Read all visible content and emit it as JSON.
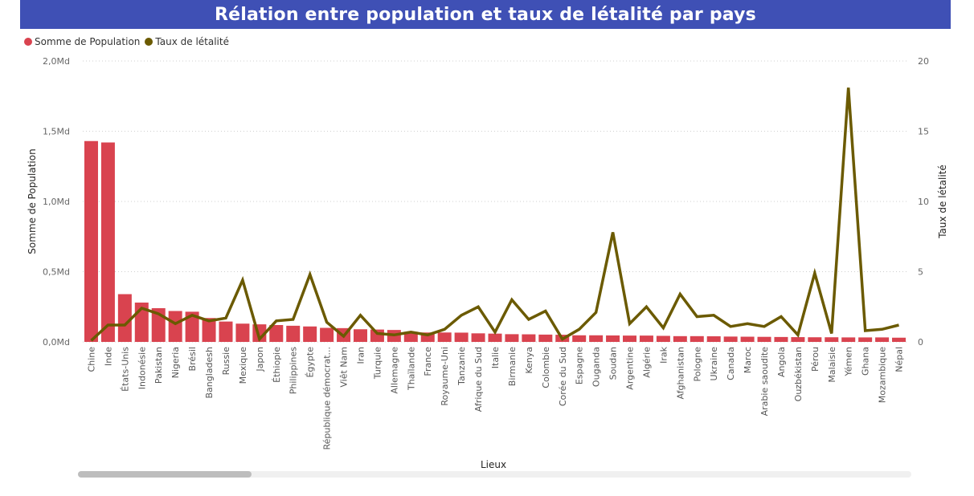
{
  "title": "Rélation entre population et taux de létalité par pays",
  "legend": {
    "population_label": "Somme de Population",
    "lethality_label": "Taux de létalité"
  },
  "colors": {
    "title_bg": "#3f50b5",
    "bars": "#d9434f",
    "line": "#6b5a00"
  },
  "chart_data": {
    "type": "bar",
    "title": "Rélation entre population et taux de létalité par pays",
    "xlabel": "Lieux",
    "ylabel": "Somme de Population",
    "y2label": "Taux de létalité",
    "ylim": [
      0,
      2.0
    ],
    "y2lim": [
      0,
      20
    ],
    "y_ticks": [
      "0,0Md",
      "0,5Md",
      "1,0Md",
      "1,5Md",
      "2,0Md"
    ],
    "y2_ticks": [
      "0",
      "5",
      "10",
      "15",
      "20"
    ],
    "grid": true,
    "legend_position": "top-left",
    "categories": [
      "Chine",
      "Inde",
      "États-Unis",
      "Indonésie",
      "Pakistan",
      "Nigeria",
      "Brésil",
      "Bangladesh",
      "Russie",
      "Mexique",
      "Japon",
      "Éthiopie",
      "Philippines",
      "Égypte",
      "République démocrat...",
      "Viêt Nam",
      "Iran",
      "Turquie",
      "Allemagne",
      "Thaïlande",
      "France",
      "Royaume-Uni",
      "Tanzanie",
      "Afrique du Sud",
      "Italie",
      "Birmanie",
      "Kenya",
      "Colombie",
      "Corée du Sud",
      "Espagne",
      "Ouganda",
      "Soudan",
      "Argentine",
      "Algérie",
      "Irak",
      "Afghanistan",
      "Pologne",
      "Ukraine",
      "Canada",
      "Maroc",
      "Arabie saoudite",
      "Angola",
      "Ouzbékistan",
      "Pérou",
      "Malaisie",
      "Yémen",
      "Ghana",
      "Mozambique",
      "Népal"
    ],
    "series": [
      {
        "name": "Somme de Population",
        "type": "bar",
        "axis": "left",
        "values": [
          1.43,
          1.42,
          0.34,
          0.28,
          0.24,
          0.22,
          0.215,
          0.17,
          0.145,
          0.13,
          0.125,
          0.12,
          0.115,
          0.11,
          0.1,
          0.098,
          0.09,
          0.088,
          0.085,
          0.072,
          0.067,
          0.067,
          0.066,
          0.061,
          0.059,
          0.055,
          0.054,
          0.052,
          0.051,
          0.047,
          0.047,
          0.046,
          0.045,
          0.045,
          0.043,
          0.041,
          0.041,
          0.04,
          0.038,
          0.037,
          0.036,
          0.035,
          0.034,
          0.033,
          0.033,
          0.032,
          0.032,
          0.032,
          0.03
        ]
      },
      {
        "name": "Taux de létalité",
        "type": "line",
        "axis": "right",
        "values": [
          0.1,
          1.2,
          1.2,
          2.4,
          2.0,
          1.3,
          1.9,
          1.5,
          1.7,
          4.4,
          0.2,
          1.5,
          1.6,
          4.8,
          1.4,
          0.4,
          1.9,
          0.6,
          0.5,
          0.7,
          0.5,
          0.9,
          1.9,
          2.5,
          0.7,
          3.0,
          1.6,
          2.2,
          0.2,
          0.9,
          2.1,
          7.8,
          1.3,
          2.5,
          1.0,
          3.4,
          1.8,
          1.9,
          1.1,
          1.3,
          1.1,
          1.8,
          0.5,
          4.9,
          0.6,
          18.1,
          0.8,
          0.9,
          1.2
        ]
      }
    ]
  }
}
